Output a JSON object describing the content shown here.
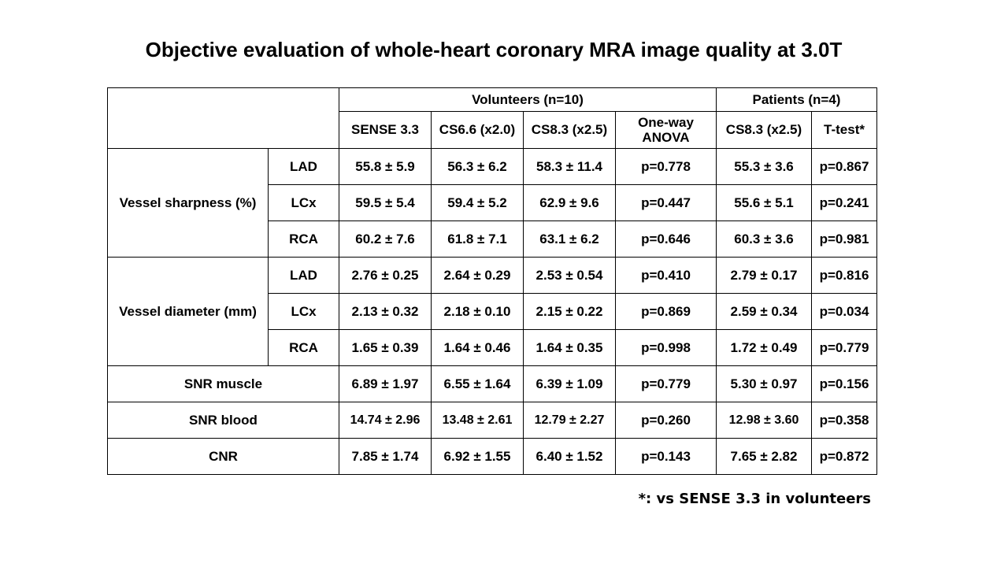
{
  "title": "Objective evaluation of whole-heart coronary MRA image quality at 3.0T",
  "groups": {
    "volunteers": "Volunteers (n=10)",
    "patients": "Patients (n=4)"
  },
  "columns": [
    "SENSE 3.3",
    "CS6.6 (x2.0)",
    "CS8.3 (x2.5)",
    "One-way ANOVA",
    "CS8.3 (x2.5)",
    "T-test*"
  ],
  "metrics": {
    "vessel_sharpness": "Vessel sharpness (%)",
    "vessel_diameter": "Vessel diameter (mm)",
    "snr_muscle": "SNR muscle",
    "snr_blood": "SNR blood",
    "cnr": "CNR"
  },
  "rows": [
    {
      "sub": "LAD",
      "cells": [
        "55.8 ± 5.9",
        "56.3 ± 6.2",
        "58.3 ± 11.4",
        "p=0.778",
        "55.3 ± 3.6",
        "p=0.867"
      ]
    },
    {
      "sub": "LCx",
      "cells": [
        "59.5 ± 5.4",
        "59.4 ± 5.2",
        "62.9 ± 9.6",
        "p=0.447",
        "55.6 ± 5.1",
        "p=0.241"
      ]
    },
    {
      "sub": "RCA",
      "cells": [
        "60.2 ± 7.6",
        "61.8 ± 7.1",
        "63.1 ± 6.2",
        "p=0.646",
        "60.3 ± 3.6",
        "p=0.981"
      ]
    },
    {
      "sub": "LAD",
      "cells": [
        "2.76 ± 0.25",
        "2.64 ± 0.29",
        "2.53 ± 0.54",
        "p=0.410",
        "2.79 ± 0.17",
        "p=0.816"
      ]
    },
    {
      "sub": "LCx",
      "cells": [
        "2.13 ± 0.32",
        "2.18 ± 0.10",
        "2.15 ± 0.22",
        "p=0.869",
        "2.59 ± 0.34",
        "p=0.034"
      ]
    },
    {
      "sub": "RCA",
      "cells": [
        "1.65 ± 0.39",
        "1.64 ± 0.46",
        "1.64 ± 0.35",
        "p=0.998",
        "1.72 ± 0.49",
        "p=0.779"
      ]
    },
    {
      "cells": [
        "6.89 ± 1.97",
        "6.55 ± 1.64",
        "6.39 ± 1.09",
        "p=0.779",
        "5.30 ± 0.97",
        "p=0.156"
      ]
    },
    {
      "cells": [
        "14.74 ± 2.96",
        "13.48 ± 2.61",
        "12.79 ± 2.27",
        "p=0.260",
        "12.98 ± 3.60",
        "p=0.358"
      ]
    },
    {
      "cells": [
        "7.85 ± 1.74",
        "6.92 ± 1.55",
        "6.40 ± 1.52",
        "p=0.143",
        "7.65 ± 2.82",
        "p=0.872"
      ]
    }
  ],
  "footnote": "*: vs SENSE 3.3 in volunteers"
}
